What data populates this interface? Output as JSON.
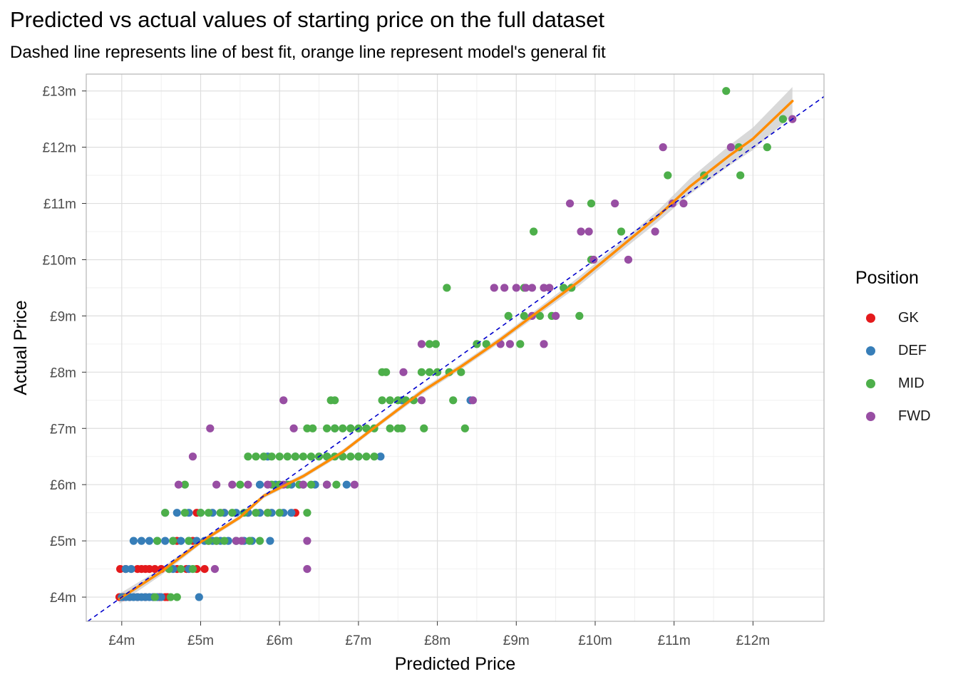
{
  "chart_data": {
    "type": "scatter",
    "title": "Predicted vs actual values of starting price on the full dataset",
    "subtitle": "Dashed line represents line of best fit, orange line represent model's general fit",
    "xlabel": "Predicted Price",
    "ylabel": "Actual Price",
    "xlim": [
      3.55,
      12.9
    ],
    "ylim": [
      3.57,
      13.3
    ],
    "x_ticks": [
      4,
      5,
      6,
      7,
      8,
      9,
      10,
      11,
      12
    ],
    "x_tick_labels": [
      "£4m",
      "£5m",
      "£6m",
      "£7m",
      "£8m",
      "£9m",
      "£10m",
      "£11m",
      "£12m"
    ],
    "y_ticks": [
      4,
      5,
      6,
      7,
      8,
      9,
      10,
      11,
      12,
      13
    ],
    "y_tick_labels": [
      "£4m",
      "£5m",
      "£6m",
      "£7m",
      "£8m",
      "£9m",
      "£10m",
      "£11m",
      "£12m",
      "£13m"
    ],
    "grid": true,
    "legend_title": "Position",
    "legend_position": "right",
    "series": [
      {
        "name": "GK",
        "color": "#e41a1c",
        "points": [
          [
            3.97,
            4.0
          ],
          [
            4.02,
            4.0
          ],
          [
            4.1,
            4.0
          ],
          [
            4.2,
            4.0
          ],
          [
            4.3,
            4.0
          ],
          [
            4.4,
            4.0
          ],
          [
            4.48,
            4.0
          ],
          [
            4.55,
            4.0
          ],
          [
            4.58,
            4.0
          ],
          [
            3.98,
            4.5
          ],
          [
            4.05,
            4.5
          ],
          [
            4.2,
            4.5
          ],
          [
            4.25,
            4.5
          ],
          [
            4.3,
            4.5
          ],
          [
            4.35,
            4.5
          ],
          [
            4.42,
            4.5
          ],
          [
            4.5,
            4.5
          ],
          [
            4.6,
            4.5
          ],
          [
            4.7,
            4.5
          ],
          [
            4.82,
            4.5
          ],
          [
            4.95,
            4.5
          ],
          [
            5.05,
            4.5
          ],
          [
            4.7,
            5.0
          ],
          [
            4.9,
            5.0
          ],
          [
            5.1,
            5.0
          ],
          [
            5.2,
            5.0
          ],
          [
            4.95,
            5.5
          ],
          [
            5.3,
            5.5
          ],
          [
            5.6,
            5.5
          ],
          [
            5.85,
            5.5
          ],
          [
            6.2,
            5.5
          ]
        ]
      },
      {
        "name": "DEF",
        "color": "#377eb8",
        "points": [
          [
            4.0,
            4.0
          ],
          [
            4.05,
            4.0
          ],
          [
            4.1,
            4.0
          ],
          [
            4.15,
            4.0
          ],
          [
            4.2,
            4.0
          ],
          [
            4.25,
            4.0
          ],
          [
            4.3,
            4.0
          ],
          [
            4.35,
            4.0
          ],
          [
            4.4,
            4.0
          ],
          [
            4.45,
            4.0
          ],
          [
            4.5,
            4.0
          ],
          [
            4.98,
            4.0
          ],
          [
            4.05,
            4.5
          ],
          [
            4.12,
            4.5
          ],
          [
            4.65,
            4.5
          ],
          [
            4.85,
            4.5
          ],
          [
            4.15,
            5.0
          ],
          [
            4.25,
            5.0
          ],
          [
            4.35,
            5.0
          ],
          [
            4.45,
            5.0
          ],
          [
            4.55,
            5.0
          ],
          [
            4.65,
            5.0
          ],
          [
            4.75,
            5.0
          ],
          [
            4.85,
            5.0
          ],
          [
            4.95,
            5.0
          ],
          [
            5.05,
            5.0
          ],
          [
            5.15,
            5.0
          ],
          [
            5.25,
            5.0
          ],
          [
            5.35,
            5.0
          ],
          [
            5.45,
            5.0
          ],
          [
            5.55,
            5.0
          ],
          [
            5.65,
            5.0
          ],
          [
            5.88,
            5.0
          ],
          [
            4.55,
            5.5
          ],
          [
            4.7,
            5.5
          ],
          [
            4.85,
            5.5
          ],
          [
            5.0,
            5.5
          ],
          [
            5.15,
            5.5
          ],
          [
            5.3,
            5.5
          ],
          [
            5.45,
            5.5
          ],
          [
            5.6,
            5.5
          ],
          [
            5.75,
            5.5
          ],
          [
            5.9,
            5.5
          ],
          [
            6.05,
            5.5
          ],
          [
            6.15,
            5.5
          ],
          [
            5.75,
            6.0
          ],
          [
            5.95,
            6.0
          ],
          [
            6.15,
            6.0
          ],
          [
            6.3,
            6.0
          ],
          [
            6.45,
            6.0
          ],
          [
            6.6,
            6.0
          ],
          [
            6.85,
            6.0
          ],
          [
            5.85,
            6.5
          ],
          [
            6.2,
            6.5
          ],
          [
            6.6,
            6.5
          ],
          [
            7.0,
            6.5
          ],
          [
            7.28,
            6.5
          ],
          [
            6.7,
            7.0
          ],
          [
            6.9,
            7.0
          ],
          [
            7.55,
            7.5
          ],
          [
            8.42,
            7.5
          ]
        ]
      },
      {
        "name": "MID",
        "color": "#4daf4a",
        "points": [
          [
            4.42,
            4.0
          ],
          [
            4.62,
            4.0
          ],
          [
            4.7,
            4.0
          ],
          [
            4.6,
            4.5
          ],
          [
            4.75,
            4.5
          ],
          [
            4.9,
            4.5
          ],
          [
            4.45,
            5.0
          ],
          [
            4.65,
            5.0
          ],
          [
            4.85,
            5.0
          ],
          [
            5.1,
            5.0
          ],
          [
            5.2,
            5.0
          ],
          [
            5.3,
            5.0
          ],
          [
            5.45,
            5.0
          ],
          [
            5.62,
            5.0
          ],
          [
            5.75,
            5.0
          ],
          [
            4.55,
            5.5
          ],
          [
            4.8,
            5.5
          ],
          [
            5.0,
            5.5
          ],
          [
            5.1,
            5.5
          ],
          [
            5.25,
            5.5
          ],
          [
            5.4,
            5.5
          ],
          [
            5.55,
            5.5
          ],
          [
            5.7,
            5.5
          ],
          [
            5.85,
            5.5
          ],
          [
            6.0,
            5.5
          ],
          [
            6.35,
            5.5
          ],
          [
            4.8,
            6.0
          ],
          [
            5.5,
            6.0
          ],
          [
            5.9,
            6.0
          ],
          [
            6.0,
            6.0
          ],
          [
            6.1,
            6.0
          ],
          [
            6.25,
            6.0
          ],
          [
            6.4,
            6.0
          ],
          [
            6.6,
            6.0
          ],
          [
            6.72,
            6.0
          ],
          [
            5.6,
            6.5
          ],
          [
            5.7,
            6.5
          ],
          [
            5.8,
            6.5
          ],
          [
            5.9,
            6.5
          ],
          [
            6.0,
            6.5
          ],
          [
            6.1,
            6.5
          ],
          [
            6.2,
            6.5
          ],
          [
            6.3,
            6.5
          ],
          [
            6.4,
            6.5
          ],
          [
            6.5,
            6.5
          ],
          [
            6.6,
            6.5
          ],
          [
            6.7,
            6.5
          ],
          [
            6.8,
            6.5
          ],
          [
            6.9,
            6.5
          ],
          [
            7.0,
            6.5
          ],
          [
            7.1,
            6.5
          ],
          [
            7.2,
            6.5
          ],
          [
            6.35,
            7.0
          ],
          [
            6.42,
            7.0
          ],
          [
            6.6,
            7.0
          ],
          [
            6.7,
            7.0
          ],
          [
            6.8,
            7.0
          ],
          [
            6.9,
            7.0
          ],
          [
            7.0,
            7.0
          ],
          [
            7.1,
            7.0
          ],
          [
            7.2,
            7.0
          ],
          [
            7.4,
            7.0
          ],
          [
            7.5,
            7.0
          ],
          [
            7.55,
            7.0
          ],
          [
            7.83,
            7.0
          ],
          [
            8.35,
            7.0
          ],
          [
            6.65,
            7.5
          ],
          [
            6.7,
            7.5
          ],
          [
            7.3,
            7.5
          ],
          [
            7.4,
            7.5
          ],
          [
            7.5,
            7.5
          ],
          [
            7.6,
            7.5
          ],
          [
            7.7,
            7.5
          ],
          [
            8.2,
            7.5
          ],
          [
            7.3,
            8.0
          ],
          [
            7.35,
            8.0
          ],
          [
            7.8,
            8.0
          ],
          [
            7.9,
            8.0
          ],
          [
            8.0,
            8.0
          ],
          [
            8.15,
            8.0
          ],
          [
            8.3,
            8.0
          ],
          [
            7.9,
            8.5
          ],
          [
            7.98,
            8.5
          ],
          [
            8.5,
            8.5
          ],
          [
            8.62,
            8.5
          ],
          [
            9.05,
            8.5
          ],
          [
            8.9,
            9.0
          ],
          [
            9.1,
            9.0
          ],
          [
            9.3,
            9.0
          ],
          [
            9.45,
            9.0
          ],
          [
            9.8,
            9.0
          ],
          [
            8.12,
            9.5
          ],
          [
            9.1,
            9.5
          ],
          [
            9.6,
            9.5
          ],
          [
            9.7,
            9.5
          ],
          [
            9.95,
            10.0
          ],
          [
            9.22,
            10.5
          ],
          [
            10.33,
            10.5
          ],
          [
            9.95,
            11.0
          ],
          [
            10.92,
            11.5
          ],
          [
            11.38,
            11.5
          ],
          [
            11.84,
            11.5
          ],
          [
            11.82,
            12.0
          ],
          [
            12.18,
            12.0
          ],
          [
            12.38,
            12.5
          ],
          [
            11.66,
            13.0
          ]
        ]
      },
      {
        "name": "FWD",
        "color": "#984ea3",
        "points": [
          [
            5.18,
            4.5
          ],
          [
            6.35,
            4.5
          ],
          [
            5.45,
            5.0
          ],
          [
            5.52,
            5.0
          ],
          [
            6.35,
            5.0
          ],
          [
            4.72,
            6.0
          ],
          [
            5.2,
            6.0
          ],
          [
            5.4,
            6.0
          ],
          [
            5.6,
            6.0
          ],
          [
            5.85,
            6.0
          ],
          [
            6.05,
            6.0
          ],
          [
            6.3,
            6.0
          ],
          [
            6.6,
            6.0
          ],
          [
            6.95,
            6.0
          ],
          [
            4.9,
            6.5
          ],
          [
            5.12,
            7.0
          ],
          [
            6.18,
            7.0
          ],
          [
            6.05,
            7.5
          ],
          [
            7.8,
            7.5
          ],
          [
            8.45,
            7.5
          ],
          [
            7.57,
            8.0
          ],
          [
            7.8,
            8.5
          ],
          [
            8.8,
            8.5
          ],
          [
            8.92,
            8.5
          ],
          [
            9.35,
            8.5
          ],
          [
            9.2,
            9.0
          ],
          [
            9.5,
            9.0
          ],
          [
            8.72,
            9.5
          ],
          [
            8.85,
            9.5
          ],
          [
            9.0,
            9.5
          ],
          [
            9.12,
            9.5
          ],
          [
            9.2,
            9.5
          ],
          [
            9.35,
            9.5
          ],
          [
            9.42,
            9.5
          ],
          [
            9.98,
            10.0
          ],
          [
            10.42,
            10.0
          ],
          [
            9.82,
            10.5
          ],
          [
            9.92,
            10.5
          ],
          [
            10.76,
            10.5
          ],
          [
            9.68,
            11.0
          ],
          [
            10.25,
            11.0
          ],
          [
            10.98,
            11.0
          ],
          [
            11.12,
            11.0
          ],
          [
            10.86,
            12.0
          ],
          [
            11.72,
            12.0
          ],
          [
            12.5,
            12.5
          ]
        ]
      }
    ],
    "reference_line": {
      "style": "dashed",
      "color": "#0000cc",
      "slope": 1,
      "intercept": 0
    },
    "fit_line": {
      "color": "#ff8c00",
      "points": [
        [
          3.97,
          3.97
        ],
        [
          4.5,
          4.45
        ],
        [
          5.0,
          4.98
        ],
        [
          5.5,
          5.42
        ],
        [
          5.8,
          5.8
        ],
        [
          6.3,
          6.15
        ],
        [
          6.8,
          6.58
        ],
        [
          7.3,
          7.12
        ],
        [
          7.8,
          7.65
        ],
        [
          8.3,
          8.1
        ],
        [
          8.8,
          8.58
        ],
        [
          9.3,
          9.1
        ],
        [
          9.8,
          9.62
        ],
        [
          10.3,
          10.2
        ],
        [
          10.8,
          10.78
        ],
        [
          11.2,
          11.3
        ],
        [
          11.7,
          11.85
        ],
        [
          12.0,
          12.15
        ],
        [
          12.5,
          12.82
        ]
      ]
    },
    "confidence_band": {
      "color": "#cccccc",
      "halfwidth": [
        0.09,
        0.06,
        0.04,
        0.04,
        0.04,
        0.04,
        0.04,
        0.04,
        0.05,
        0.05,
        0.05,
        0.06,
        0.08,
        0.08,
        0.1,
        0.14,
        0.18,
        0.2,
        0.25
      ]
    }
  }
}
